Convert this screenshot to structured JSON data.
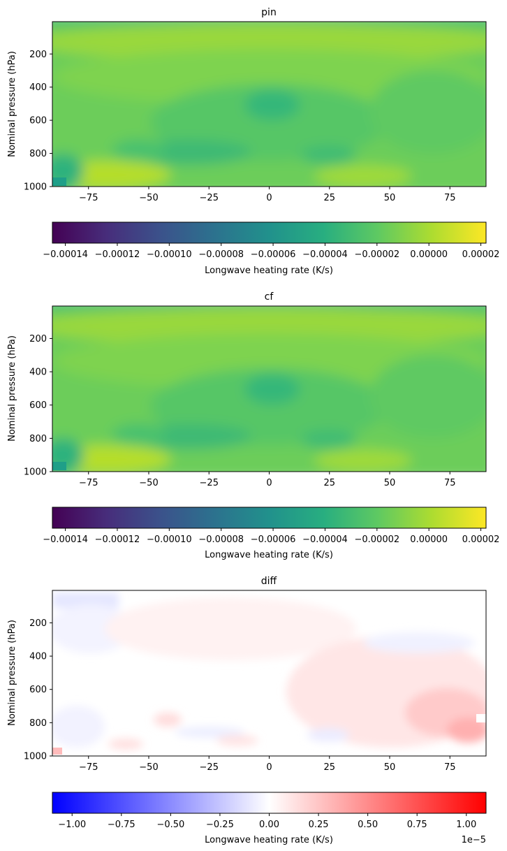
{
  "chart_data": [
    {
      "type": "heatmap",
      "title": "pin",
      "xlabel": "",
      "ylabel": "Nominal pressure (hPa)",
      "xlim": [
        -90,
        90
      ],
      "ylim": [
        1000,
        5
      ],
      "xticks": [
        -75,
        -50,
        -25,
        0,
        25,
        50,
        75
      ],
      "yticks": [
        200,
        400,
        600,
        800,
        1000
      ],
      "colormap": "viridis",
      "colorbar": {
        "label": "Longwave heating rate (K/s)",
        "range": [
          -0.000145,
          2.2e-05
        ],
        "ticks": [
          -0.00014,
          -0.00012,
          -0.0001,
          -8e-05,
          -6e-05,
          -4e-05,
          -2e-05,
          0.0,
          2e-05
        ],
        "tick_labels": [
          "−0.00014",
          "−0.00012",
          "−0.00010",
          "−0.00008",
          "−0.00006",
          "−0.00004",
          "−0.00002",
          "0.00000",
          "0.00002"
        ]
      }
    },
    {
      "type": "heatmap",
      "title": "cf",
      "xlabel": "",
      "ylabel": "Nominal pressure (hPa)",
      "xlim": [
        -90,
        90
      ],
      "ylim": [
        1000,
        5
      ],
      "xticks": [
        -75,
        -50,
        -25,
        0,
        25,
        50,
        75
      ],
      "yticks": [
        200,
        400,
        600,
        800,
        1000
      ],
      "colormap": "viridis",
      "colorbar": {
        "label": "Longwave heating rate (K/s)",
        "range": [
          -0.000145,
          2.2e-05
        ],
        "ticks": [
          -0.00014,
          -0.00012,
          -0.0001,
          -8e-05,
          -6e-05,
          -4e-05,
          -2e-05,
          0.0,
          2e-05
        ],
        "tick_labels": [
          "−0.00014",
          "−0.00012",
          "−0.00010",
          "−0.00008",
          "−0.00006",
          "−0.00004",
          "−0.00002",
          "0.00000",
          "0.00002"
        ]
      }
    },
    {
      "type": "heatmap",
      "title": "diff",
      "xlabel": "",
      "ylabel": "Nominal pressure (hPa)",
      "xlim": [
        -90,
        90
      ],
      "ylim": [
        1000,
        5
      ],
      "xticks": [
        -75,
        -50,
        -25,
        0,
        25,
        50,
        75
      ],
      "yticks": [
        200,
        400,
        600,
        800,
        1000
      ],
      "colormap": "bwr",
      "colorbar": {
        "label": "Longwave heating rate (K/s)",
        "range": [
          -1.1,
          1.1
        ],
        "ticks": [
          -1.0,
          -0.75,
          -0.5,
          -0.25,
          0.0,
          0.25,
          0.5,
          0.75,
          1.0
        ],
        "tick_labels": [
          "−1.00",
          "−0.75",
          "−0.50",
          "−0.25",
          "0.00",
          "0.25",
          "0.50",
          "0.75",
          "1.00"
        ],
        "offset_text": "1e−5"
      }
    }
  ]
}
